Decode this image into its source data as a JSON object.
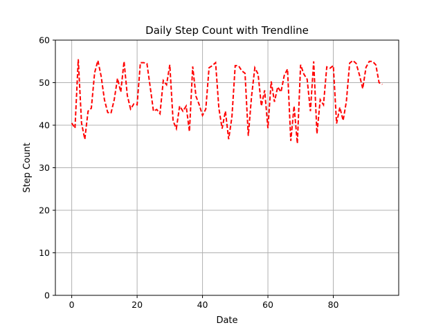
{
  "chart_data": {
    "type": "line",
    "title": "Daily Step Count with Trendline",
    "xlabel": "Date",
    "ylabel": "Step Count",
    "xlim": [
      -5,
      100
    ],
    "ylim": [
      0,
      60
    ],
    "xticks": [
      0,
      20,
      40,
      60,
      80
    ],
    "yticks": [
      0,
      10,
      20,
      30,
      40,
      50,
      60
    ],
    "grid": true,
    "series": [
      {
        "color": "#ff0000",
        "style": "dashed",
        "x": [
          0,
          1,
          2,
          3,
          4,
          5,
          6,
          7,
          8,
          9,
          10,
          11,
          12,
          13,
          14,
          15,
          16,
          17,
          18,
          19,
          20,
          21,
          22,
          23,
          24,
          25,
          26,
          27,
          28,
          29,
          30,
          31,
          32,
          33,
          34,
          35,
          36,
          37,
          38,
          39,
          40,
          41,
          42,
          43,
          44,
          45,
          46,
          47,
          48,
          49,
          50,
          51,
          52,
          53,
          54,
          55,
          56,
          57,
          58,
          59,
          60,
          61,
          62,
          63,
          64,
          65,
          66,
          67,
          68,
          69,
          70,
          71,
          72,
          73,
          74,
          75,
          76,
          77,
          78,
          79,
          80,
          81,
          82,
          83,
          84,
          85,
          86,
          87,
          88,
          89,
          90,
          91,
          92,
          93,
          94,
          95
        ],
        "values": [
          40.5,
          39.3,
          55.5,
          40.5,
          36.7,
          43.3,
          44.0,
          52.3,
          55.2,
          51.5,
          46.0,
          43.0,
          42.8,
          46.0,
          51.0,
          47.8,
          55.0,
          47.0,
          43.8,
          45.0,
          44.8,
          54.7,
          54.7,
          54.5,
          49.0,
          43.3,
          43.7,
          42.7,
          50.5,
          49.5,
          54.2,
          41.0,
          39.2,
          44.5,
          43.3,
          44.5,
          38.5,
          53.8,
          46.8,
          44.8,
          42.3,
          43.8,
          53.5,
          54.0,
          54.7,
          44.0,
          39.2,
          43.3,
          36.7,
          42.0,
          54.0,
          54.0,
          52.8,
          52.2,
          37.5,
          46.8,
          53.5,
          52.0,
          44.5,
          48.2,
          39.3,
          50.3,
          45.5,
          49.0,
          47.8,
          51.7,
          53.2,
          36.3,
          44.5,
          35.7,
          54.2,
          52.0,
          50.8,
          43.3,
          55.0,
          38.0,
          46.0,
          44.8,
          53.7,
          53.4,
          54.0,
          40.4,
          44.2,
          41.1,
          45.6,
          54.6,
          55.2,
          54.5,
          51.8,
          48.6,
          53.6,
          55.0,
          55.0,
          54.2,
          50.0,
          49.6
        ]
      }
    ]
  }
}
